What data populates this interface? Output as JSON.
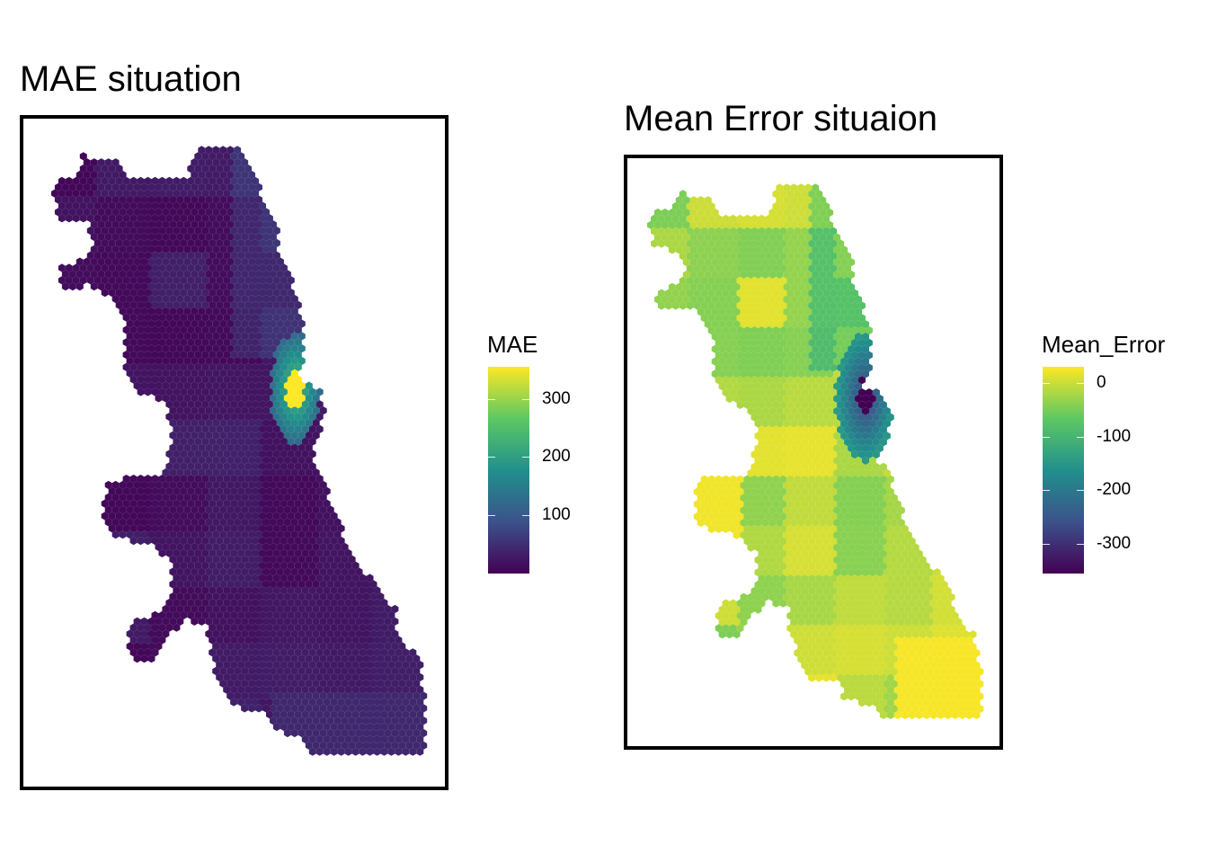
{
  "panels": [
    {
      "id": "mae",
      "title": "MAE situation",
      "legend": {
        "title": "MAE",
        "min": 0,
        "max": 355,
        "ticks": [
          {
            "value": 100,
            "label": "100"
          },
          {
            "value": 200,
            "label": "200"
          },
          {
            "value": 300,
            "label": "300"
          }
        ],
        "palette": [
          "#440154",
          "#3b528b",
          "#21908c",
          "#5dc863",
          "#fde725"
        ]
      }
    },
    {
      "id": "mean_error",
      "title": "Mean Error situaion",
      "legend": {
        "title": "Mean_Error",
        "min": -355,
        "max": 30,
        "ticks": [
          {
            "value": 0,
            "label": "0"
          },
          {
            "value": -100,
            "label": "-100"
          },
          {
            "value": -200,
            "label": "-200"
          },
          {
            "value": -300,
            "label": "-300"
          }
        ],
        "palette": [
          "#440154",
          "#3b528b",
          "#21908c",
          "#5dc863",
          "#fde725"
        ]
      }
    }
  ],
  "map_description": {
    "region": "city boundary rendered as hexagonal grid, coloured per district",
    "hotspot_note": "highest MAE / most negative Mean_Error near downtown lakefront"
  }
}
